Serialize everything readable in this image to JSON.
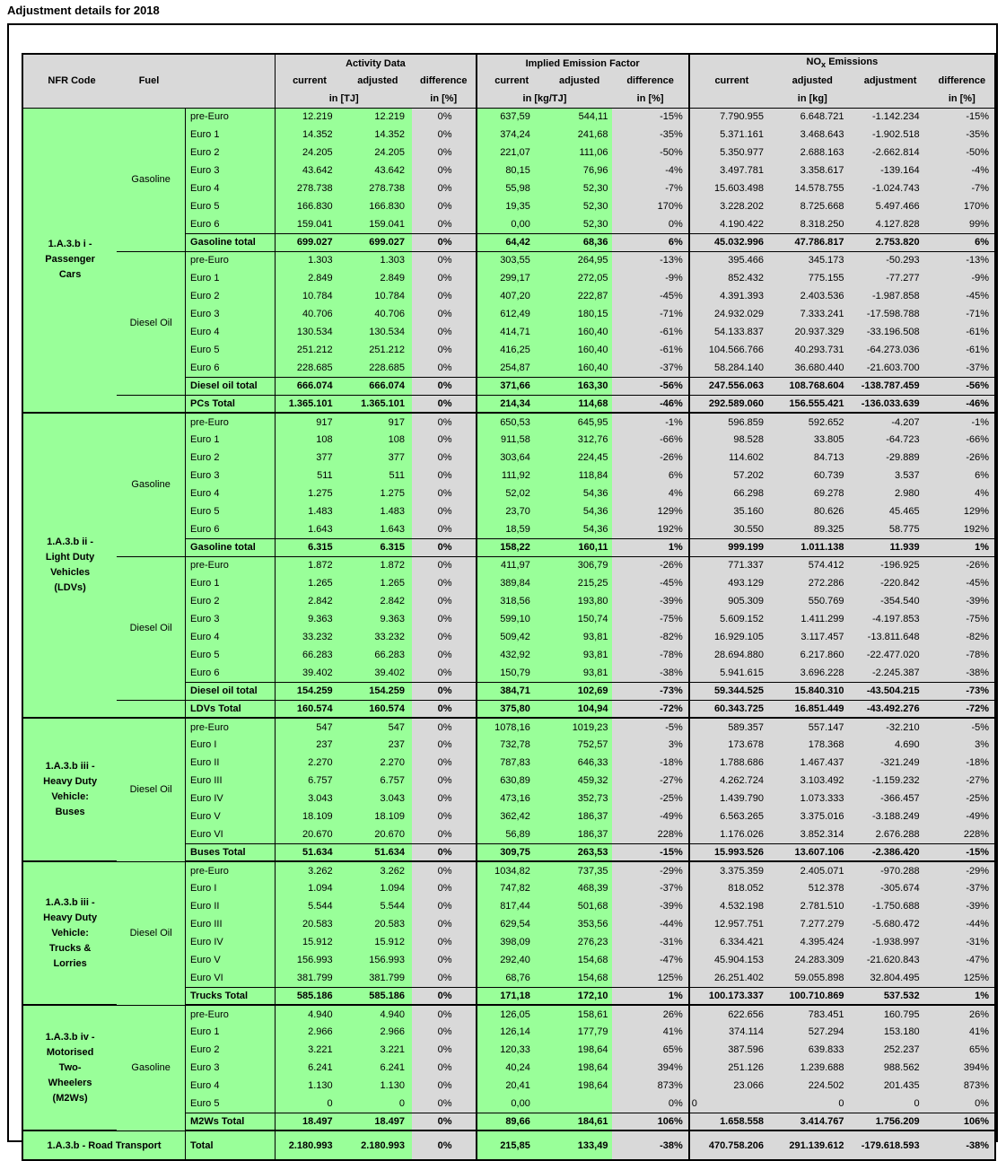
{
  "title": "Adjustment details for 2018",
  "colors": {
    "green": "#99FF99",
    "gray": "#D9D9D9",
    "border": "#000000"
  },
  "header": {
    "nfr": "NFR Code",
    "fuel": "Fuel",
    "cols": {
      "current": "current",
      "adjusted": "adjusted",
      "adjustment": "adjustment",
      "difference": "difference"
    },
    "units": {
      "pct": "in [%]"
    },
    "groups": [
      {
        "label": "Activity Data",
        "unit_vals": "in [TJ]"
      },
      {
        "label": "Implied Emission Factor",
        "unit_vals": "in [kg/TJ]"
      },
      {
        "label_pre": "NO",
        "label_sub": "x",
        "label_post": " Emissions",
        "unit_vals": "in [kg]"
      }
    ]
  },
  "sections": [
    {
      "nfr_lines": [
        "1.A.3.b i -",
        "Passenger",
        "Cars"
      ],
      "blocks": [
        {
          "fuel": "Gasoline",
          "rows": [
            [
              "pre-Euro",
              "12.219",
              "12.219",
              "0%",
              "637,59",
              "544,11",
              "-15%",
              "7.790.955",
              "6.648.721",
              "-1.142.234",
              "-15%"
            ],
            [
              "Euro 1",
              "14.352",
              "14.352",
              "0%",
              "374,24",
              "241,68",
              "-35%",
              "5.371.161",
              "3.468.643",
              "-1.902.518",
              "-35%"
            ],
            [
              "Euro 2",
              "24.205",
              "24.205",
              "0%",
              "221,07",
              "111,06",
              "-50%",
              "5.350.977",
              "2.688.163",
              "-2.662.814",
              "-50%"
            ],
            [
              "Euro 3",
              "43.642",
              "43.642",
              "0%",
              "80,15",
              "76,96",
              "-4%",
              "3.497.781",
              "3.358.617",
              "-139.164",
              "-4%"
            ],
            [
              "Euro 4",
              "278.738",
              "278.738",
              "0%",
              "55,98",
              "52,30",
              "-7%",
              "15.603.498",
              "14.578.755",
              "-1.024.743",
              "-7%"
            ],
            [
              "Euro 5",
              "166.830",
              "166.830",
              "0%",
              "19,35",
              "52,30",
              "170%",
              "3.228.202",
              "8.725.668",
              "5.497.466",
              "170%"
            ],
            [
              "Euro 6",
              "159.041",
              "159.041",
              "0%",
              "0,00",
              "52,30",
              "0%",
              "4.190.422",
              "8.318.250",
              "4.127.828",
              "99%"
            ]
          ],
          "total": [
            "Gasoline total",
            "699.027",
            "699.027",
            "0%",
            "64,42",
            "68,36",
            "6%",
            "45.032.996",
            "47.786.817",
            "2.753.820",
            "6%"
          ]
        },
        {
          "fuel": "Diesel Oil",
          "rows": [
            [
              "pre-Euro",
              "1.303",
              "1.303",
              "0%",
              "303,55",
              "264,95",
              "-13%",
              "395.466",
              "345.173",
              "-50.293",
              "-13%"
            ],
            [
              "Euro 1",
              "2.849",
              "2.849",
              "0%",
              "299,17",
              "272,05",
              "-9%",
              "852.432",
              "775.155",
              "-77.277",
              "-9%"
            ],
            [
              "Euro 2",
              "10.784",
              "10.784",
              "0%",
              "407,20",
              "222,87",
              "-45%",
              "4.391.393",
              "2.403.536",
              "-1.987.858",
              "-45%"
            ],
            [
              "Euro 3",
              "40.706",
              "40.706",
              "0%",
              "612,49",
              "180,15",
              "-71%",
              "24.932.029",
              "7.333.241",
              "-17.598.788",
              "-71%"
            ],
            [
              "Euro 4",
              "130.534",
              "130.534",
              "0%",
              "414,71",
              "160,40",
              "-61%",
              "54.133.837",
              "20.937.329",
              "-33.196.508",
              "-61%"
            ],
            [
              "Euro 5",
              "251.212",
              "251.212",
              "0%",
              "416,25",
              "160,40",
              "-61%",
              "104.566.766",
              "40.293.731",
              "-64.273.036",
              "-61%"
            ],
            [
              "Euro 6",
              "228.685",
              "228.685",
              "0%",
              "254,87",
              "160,40",
              "-37%",
              "58.284.140",
              "36.680.440",
              "-21.603.700",
              "-37%"
            ]
          ],
          "total": [
            "Diesel oil total",
            "666.074",
            "666.074",
            "0%",
            "371,66",
            "163,30",
            "-56%",
            "247.556.063",
            "108.768.604",
            "-138.787.459",
            "-56%"
          ]
        }
      ],
      "section_total": [
        "PCs Total",
        "1.365.101",
        "1.365.101",
        "0%",
        "214,34",
        "114,68",
        "-46%",
        "292.589.060",
        "156.555.421",
        "-136.033.639",
        "-46%"
      ]
    },
    {
      "nfr_lines": [
        "1.A.3.b ii  -",
        "Light Duty",
        "Vehicles",
        "(LDVs)"
      ],
      "blocks": [
        {
          "fuel": "Gasoline",
          "rows": [
            [
              "pre-Euro",
              "917",
              "917",
              "0%",
              "650,53",
              "645,95",
              "-1%",
              "596.859",
              "592.652",
              "-4.207",
              "-1%"
            ],
            [
              "Euro 1",
              "108",
              "108",
              "0%",
              "911,58",
              "312,76",
              "-66%",
              "98.528",
              "33.805",
              "-64.723",
              "-66%"
            ],
            [
              "Euro 2",
              "377",
              "377",
              "0%",
              "303,64",
              "224,45",
              "-26%",
              "114.602",
              "84.713",
              "-29.889",
              "-26%"
            ],
            [
              "Euro 3",
              "511",
              "511",
              "0%",
              "111,92",
              "118,84",
              "6%",
              "57.202",
              "60.739",
              "3.537",
              "6%"
            ],
            [
              "Euro 4",
              "1.275",
              "1.275",
              "0%",
              "52,02",
              "54,36",
              "4%",
              "66.298",
              "69.278",
              "2.980",
              "4%"
            ],
            [
              "Euro 5",
              "1.483",
              "1.483",
              "0%",
              "23,70",
              "54,36",
              "129%",
              "35.160",
              "80.626",
              "45.465",
              "129%"
            ],
            [
              "Euro 6",
              "1.643",
              "1.643",
              "0%",
              "18,59",
              "54,36",
              "192%",
              "30.550",
              "89.325",
              "58.775",
              "192%"
            ]
          ],
          "total": [
            "Gasoline total",
            "6.315",
            "6.315",
            "0%",
            "158,22",
            "160,11",
            "1%",
            "999.199",
            "1.011.138",
            "11.939",
            "1%"
          ]
        },
        {
          "fuel": "Diesel Oil",
          "rows": [
            [
              "pre-Euro",
              "1.872",
              "1.872",
              "0%",
              "411,97",
              "306,79",
              "-26%",
              "771.337",
              "574.412",
              "-196.925",
              "-26%"
            ],
            [
              "Euro 1",
              "1.265",
              "1.265",
              "0%",
              "389,84",
              "215,25",
              "-45%",
              "493.129",
              "272.286",
              "-220.842",
              "-45%"
            ],
            [
              "Euro 2",
              "2.842",
              "2.842",
              "0%",
              "318,56",
              "193,80",
              "-39%",
              "905.309",
              "550.769",
              "-354.540",
              "-39%"
            ],
            [
              "Euro 3",
              "9.363",
              "9.363",
              "0%",
              "599,10",
              "150,74",
              "-75%",
              "5.609.152",
              "1.411.299",
              "-4.197.853",
              "-75%"
            ],
            [
              "Euro 4",
              "33.232",
              "33.232",
              "0%",
              "509,42",
              "93,81",
              "-82%",
              "16.929.105",
              "3.117.457",
              "-13.811.648",
              "-82%"
            ],
            [
              "Euro 5",
              "66.283",
              "66.283",
              "0%",
              "432,92",
              "93,81",
              "-78%",
              "28.694.880",
              "6.217.860",
              "-22.477.020",
              "-78%"
            ],
            [
              "Euro 6",
              "39.402",
              "39.402",
              "0%",
              "150,79",
              "93,81",
              "-38%",
              "5.941.615",
              "3.696.228",
              "-2.245.387",
              "-38%"
            ]
          ],
          "total": [
            "Diesel oil total",
            "154.259",
            "154.259",
            "0%",
            "384,71",
            "102,69",
            "-73%",
            "59.344.525",
            "15.840.310",
            "-43.504.215",
            "-73%"
          ]
        }
      ],
      "section_total": [
        "LDVs Total",
        "160.574",
        "160.574",
        "0%",
        "375,80",
        "104,94",
        "-72%",
        "60.343.725",
        "16.851.449",
        "-43.492.276",
        "-72%"
      ]
    },
    {
      "nfr_lines": [
        "1.A.3.b iii -",
        "Heavy Duty",
        "Vehicle:",
        "Buses"
      ],
      "blocks": [
        {
          "fuel": "Diesel Oil",
          "rows": [
            [
              "pre-Euro",
              "547",
              "547",
              "0%",
              "1078,16",
              "1019,23",
              "-5%",
              "589.357",
              "557.147",
              "-32.210",
              "-5%"
            ],
            [
              "Euro I",
              "237",
              "237",
              "0%",
              "732,78",
              "752,57",
              "3%",
              "173.678",
              "178.368",
              "4.690",
              "3%"
            ],
            [
              "Euro II",
              "2.270",
              "2.270",
              "0%",
              "787,83",
              "646,33",
              "-18%",
              "1.788.686",
              "1.467.437",
              "-321.249",
              "-18%"
            ],
            [
              "Euro III",
              "6.757",
              "6.757",
              "0%",
              "630,89",
              "459,32",
              "-27%",
              "4.262.724",
              "3.103.492",
              "-1.159.232",
              "-27%"
            ],
            [
              "Euro IV",
              "3.043",
              "3.043",
              "0%",
              "473,16",
              "352,73",
              "-25%",
              "1.439.790",
              "1.073.333",
              "-366.457",
              "-25%"
            ],
            [
              "Euro V",
              "18.109",
              "18.109",
              "0%",
              "362,42",
              "186,37",
              "-49%",
              "6.563.265",
              "3.375.016",
              "-3.188.249",
              "-49%"
            ],
            [
              "Euro VI",
              "20.670",
              "20.670",
              "0%",
              "56,89",
              "186,37",
              "228%",
              "1.176.026",
              "3.852.314",
              "2.676.288",
              "228%"
            ]
          ],
          "total": [
            "Buses Total",
            "51.634",
            "51.634",
            "0%",
            "309,75",
            "263,53",
            "-15%",
            "15.993.526",
            "13.607.106",
            "-2.386.420",
            "-15%"
          ]
        }
      ],
      "section_total": null
    },
    {
      "nfr_lines": [
        "1.A.3.b iii -",
        "Heavy Duty",
        "Vehicle:",
        "Trucks &",
        "Lorries"
      ],
      "blocks": [
        {
          "fuel": "Diesel Oil",
          "rows": [
            [
              "pre-Euro",
              "3.262",
              "3.262",
              "0%",
              "1034,82",
              "737,35",
              "-29%",
              "3.375.359",
              "2.405.071",
              "-970.288",
              "-29%"
            ],
            [
              "Euro I",
              "1.094",
              "1.094",
              "0%",
              "747,82",
              "468,39",
              "-37%",
              "818.052",
              "512.378",
              "-305.674",
              "-37%"
            ],
            [
              "Euro II",
              "5.544",
              "5.544",
              "0%",
              "817,44",
              "501,68",
              "-39%",
              "4.532.198",
              "2.781.510",
              "-1.750.688",
              "-39%"
            ],
            [
              "Euro III",
              "20.583",
              "20.583",
              "0%",
              "629,54",
              "353,56",
              "-44%",
              "12.957.751",
              "7.277.279",
              "-5.680.472",
              "-44%"
            ],
            [
              "Euro IV",
              "15.912",
              "15.912",
              "0%",
              "398,09",
              "276,23",
              "-31%",
              "6.334.421",
              "4.395.424",
              "-1.938.997",
              "-31%"
            ],
            [
              "Euro V",
              "156.993",
              "156.993",
              "0%",
              "292,40",
              "154,68",
              "-47%",
              "45.904.153",
              "24.283.309",
              "-21.620.843",
              "-47%"
            ],
            [
              "Euro VI",
              "381.799",
              "381.799",
              "0%",
              "68,76",
              "154,68",
              "125%",
              "26.251.402",
              "59.055.898",
              "32.804.495",
              "125%"
            ]
          ],
          "total": [
            "Trucks Total",
            "585.186",
            "585.186",
            "0%",
            "171,18",
            "172,10",
            "1%",
            "100.173.337",
            "100.710.869",
            "537.532",
            "1%"
          ]
        }
      ],
      "section_total": null
    },
    {
      "nfr_lines": [
        "1.A.3.b iv -",
        "Motorised",
        "Two-",
        "Wheelers",
        "(M2Ws)"
      ],
      "blocks": [
        {
          "fuel": "Gasoline",
          "rows": [
            [
              "pre-Euro",
              "4.940",
              "4.940",
              "0%",
              "126,05",
              "158,61",
              "26%",
              "622.656",
              "783.451",
              "160.795",
              "26%"
            ],
            [
              "Euro 1",
              "2.966",
              "2.966",
              "0%",
              "126,14",
              "177,79",
              "41%",
              "374.114",
              "527.294",
              "153.180",
              "41%"
            ],
            [
              "Euro 2",
              "3.221",
              "3.221",
              "0%",
              "120,33",
              "198,64",
              "65%",
              "387.596",
              "639.833",
              "252.237",
              "65%"
            ],
            [
              "Euro 3",
              "6.241",
              "6.241",
              "0%",
              "40,24",
              "198,64",
              "394%",
              "251.126",
              "1.239.688",
              "988.562",
              "394%"
            ],
            [
              "Euro 4",
              "1.130",
              "1.130",
              "0%",
              "20,41",
              "198,64",
              "873%",
              "23.066",
              "224.502",
              "201.435",
              "873%"
            ],
            {
              "cells": [
                "Euro 5",
                "0",
                "0",
                "0%",
                "0,00",
                "",
                "0%",
                "0",
                "0",
                "0",
                "0%"
              ],
              "align": {
                "n_cur": "left"
              }
            }
          ],
          "total": [
            "M2Ws Total",
            "18.497",
            "18.497",
            "0%",
            "89,66",
            "184,61",
            "106%",
            "1.658.558",
            "3.414.767",
            "1.756.209",
            "106%"
          ]
        }
      ],
      "section_total": null
    }
  ],
  "grand_total": {
    "nfr": "1.A.3.b - Road Transport",
    "label": "Total",
    "values": [
      "2.180.993",
      "2.180.993",
      "0%",
      "215,85",
      "133,49",
      "-38%",
      "470.758.206",
      "291.139.612",
      "-179.618.593",
      "-38%"
    ]
  }
}
